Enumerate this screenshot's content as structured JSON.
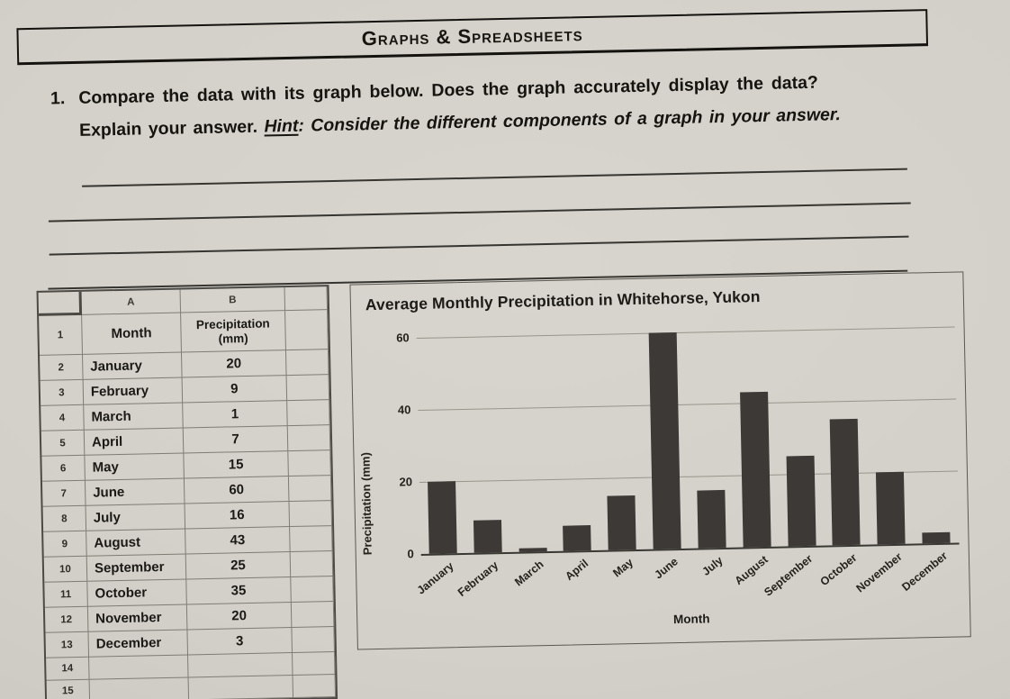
{
  "banner": {
    "title": "Graphs & Spreadsheets"
  },
  "question": {
    "number": "1.",
    "line1": "Compare the data with its graph below. Does the graph accurately display the data?",
    "explain": "Explain your answer. ",
    "hint_label": "Hint",
    "hint_rest": ": Consider the different components of a graph in your answer."
  },
  "answer_area": {
    "blank_line_count": 4
  },
  "spreadsheet": {
    "column_headers": [
      "A",
      "B"
    ],
    "header_row": {
      "num": "1",
      "a": "Month",
      "b": "Precipitation (mm)"
    },
    "rows": [
      {
        "num": "2",
        "a": "January",
        "b": "20"
      },
      {
        "num": "3",
        "a": "February",
        "b": "9"
      },
      {
        "num": "4",
        "a": "March",
        "b": "1"
      },
      {
        "num": "5",
        "a": "April",
        "b": "7"
      },
      {
        "num": "6",
        "a": "May",
        "b": "15"
      },
      {
        "num": "7",
        "a": "June",
        "b": "60"
      },
      {
        "num": "8",
        "a": "July",
        "b": "16"
      },
      {
        "num": "9",
        "a": "August",
        "b": "43"
      },
      {
        "num": "10",
        "a": "September",
        "b": "25"
      },
      {
        "num": "11",
        "a": "October",
        "b": "35"
      },
      {
        "num": "12",
        "a": "November",
        "b": "20"
      },
      {
        "num": "13",
        "a": "December",
        "b": "3"
      },
      {
        "num": "14",
        "a": "",
        "b": ""
      },
      {
        "num": "15",
        "a": "",
        "b": ""
      }
    ]
  },
  "chart_data": {
    "type": "bar",
    "title": "Average Monthly Precipitation in Whitehorse, Yukon",
    "xlabel": "Month",
    "ylabel": "Precipitation (mm)",
    "categories": [
      "January",
      "February",
      "March",
      "April",
      "May",
      "June",
      "July",
      "August",
      "September",
      "October",
      "November",
      "December"
    ],
    "values": [
      20,
      9,
      1,
      7,
      15,
      60,
      16,
      43,
      25,
      35,
      20,
      3
    ],
    "yticks": [
      0,
      20,
      40,
      60
    ],
    "ylim": [
      0,
      60
    ],
    "grid": true,
    "legend": false,
    "bar_color": "#3c3936"
  },
  "colors": {
    "paper": "#d3d0c9",
    "ink": "#16140f",
    "bar": "#3c3936"
  }
}
